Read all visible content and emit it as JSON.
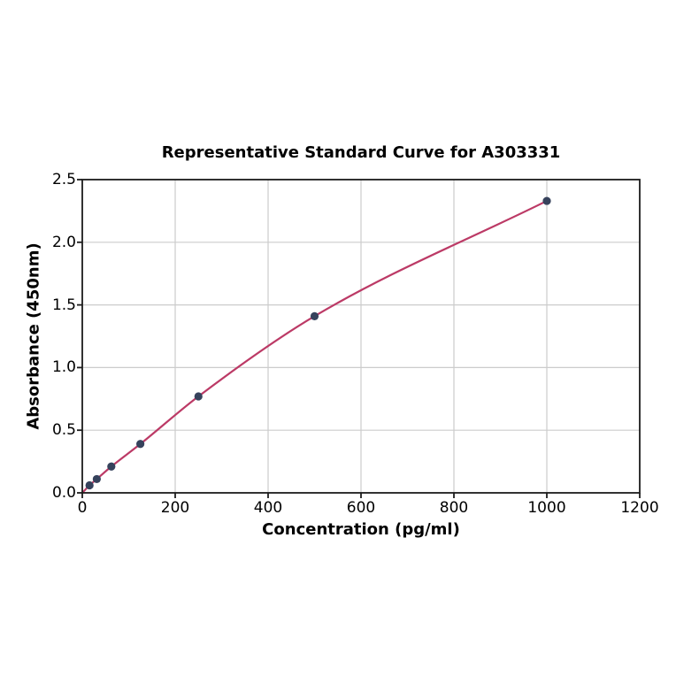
{
  "chart_data": {
    "type": "line",
    "title": "Representative Standard Curve for A303331",
    "xlabel": "Concentration (pg/ml)",
    "ylabel": "Absorbance (450nm)",
    "xlim": [
      0,
      1200
    ],
    "ylim": [
      0,
      2.5
    ],
    "x_ticks": [
      0,
      200,
      400,
      600,
      800,
      1000,
      1200
    ],
    "x_tick_labels": [
      "0",
      "200",
      "400",
      "600",
      "800",
      "1000",
      "1200"
    ],
    "y_ticks": [
      0,
      0.5,
      1,
      1.5,
      2,
      2.5
    ],
    "y_tick_labels": [
      "0.0",
      "0.5",
      "1.0",
      "1.5",
      "2.0",
      "2.5"
    ],
    "grid": true,
    "legend": null,
    "series": [
      {
        "name": "standard-curve-fit",
        "curve_x": [
          0,
          15.6,
          31.2,
          62.5,
          125,
          250,
          500,
          1000
        ],
        "curve_y": [
          0,
          0.06,
          0.11,
          0.21,
          0.39,
          0.77,
          1.41,
          2.33
        ],
        "marker_x": [
          15.6,
          31.2,
          62.5,
          125,
          250,
          500,
          1000
        ],
        "marker_y": [
          0.06,
          0.11,
          0.21,
          0.39,
          0.77,
          1.41,
          2.33
        ]
      }
    ]
  },
  "style": {
    "line_color": "#bc3a66",
    "marker_color": "#36425c",
    "grid_color": "#cccccc",
    "spine_color": "#1c1c1c",
    "background": "#ffffff"
  }
}
